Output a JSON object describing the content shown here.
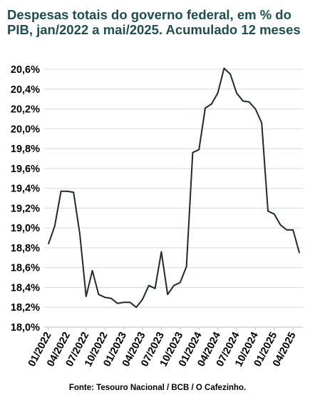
{
  "chart_data": {
    "type": "line",
    "title": "Despesas totais do governo federal, em % do PIB, jan/2022 a mai/2025. Acumulado 12 meses",
    "source": "Fonte: Tesouro Nacional / BCB / O Cafezinho.",
    "ylim": [
      18.0,
      20.6
    ],
    "yticks": [
      18.0,
      18.2,
      18.4,
      18.6,
      18.8,
      19.0,
      19.2,
      19.4,
      19.6,
      19.8,
      20.0,
      20.2,
      20.4,
      20.6
    ],
    "ytick_labels": [
      "18,0%",
      "18,2%",
      "18,4%",
      "18,6%",
      "18,8%",
      "19,0%",
      "19,2%",
      "19,4%",
      "19,6%",
      "19,8%",
      "20,0%",
      "20,2%",
      "20,4%",
      "20,6%"
    ],
    "grid": true,
    "x": [
      "01/2022",
      "02/2022",
      "03/2022",
      "04/2022",
      "05/2022",
      "06/2022",
      "07/2022",
      "08/2022",
      "09/2022",
      "10/2022",
      "11/2022",
      "12/2022",
      "01/2023",
      "02/2023",
      "03/2023",
      "04/2023",
      "05/2023",
      "06/2023",
      "07/2023",
      "08/2023",
      "09/2023",
      "10/2023",
      "11/2023",
      "12/2023",
      "01/2024",
      "02/2024",
      "03/2024",
      "04/2024",
      "05/2024",
      "06/2024",
      "07/2024",
      "08/2024",
      "09/2024",
      "10/2024",
      "11/2024",
      "12/2024",
      "01/2025",
      "02/2025",
      "03/2025",
      "04/2025",
      "05/2025"
    ],
    "xtick_labels": [
      "01/2022",
      "04/2022",
      "07/2022",
      "10/2022",
      "01/2023",
      "04/2023",
      "07/2023",
      "10/2023",
      "01/2024",
      "04/2024",
      "07/2024",
      "10/2024",
      "01/2025",
      "04/2025"
    ],
    "series": [
      {
        "color": "#1f2b2b",
        "values": [
          18.84,
          19.02,
          19.37,
          19.37,
          19.36,
          18.94,
          18.31,
          18.57,
          18.33,
          18.3,
          18.29,
          18.24,
          18.25,
          18.25,
          18.2,
          18.28,
          18.42,
          18.39,
          18.76,
          18.33,
          18.42,
          18.45,
          18.61,
          19.76,
          19.79,
          20.21,
          20.25,
          20.36,
          20.61,
          20.55,
          20.36,
          20.28,
          20.27,
          20.2,
          20.06,
          19.17,
          19.14,
          19.03,
          18.98,
          18.98,
          18.75
        ]
      }
    ]
  }
}
